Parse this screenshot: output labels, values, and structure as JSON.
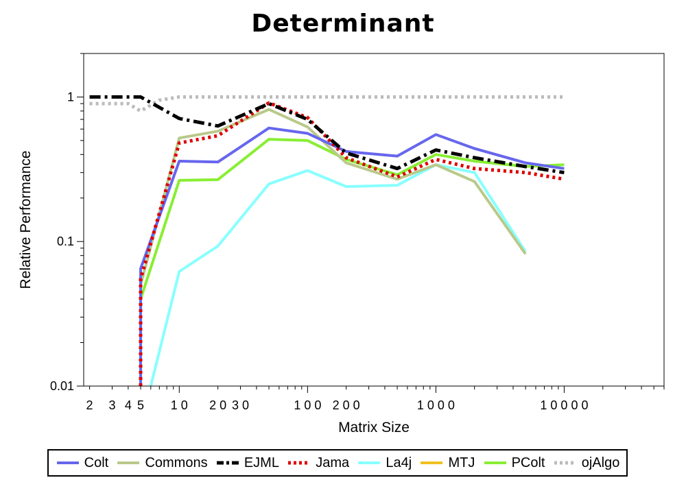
{
  "chart_data": {
    "type": "line",
    "title": "Determinant",
    "xlabel": "Matrix Size",
    "ylabel": "Relative Performance",
    "xscale": "log",
    "yscale": "log",
    "xlim": [
      1.8,
      60000
    ],
    "ylim": [
      0.01,
      2
    ],
    "x_tick_labels": [
      {
        "value": 2,
        "label": "2"
      },
      {
        "value": 3,
        "label": "3"
      },
      {
        "value": 4,
        "label": "4"
      },
      {
        "value": 5,
        "label": "5"
      },
      {
        "value": 10,
        "label": "1 0"
      },
      {
        "value": 20,
        "label": "2 0"
      },
      {
        "value": 30,
        "label": "3 0"
      },
      {
        "value": 100,
        "label": "1 0 0"
      },
      {
        "value": 200,
        "label": "2 0 0"
      },
      {
        "value": 1000,
        "label": "1 0 0 0"
      },
      {
        "value": 10000,
        "label": "1 0 0 0 0"
      }
    ],
    "y_tick_labels": [
      {
        "value": 0.01,
        "label": "0.01"
      },
      {
        "value": 0.1,
        "label": "0.1"
      },
      {
        "value": 1,
        "label": "1"
      }
    ],
    "legend_position": "bottom",
    "grid": false,
    "series": [
      {
        "name": "Colt",
        "color": "#6666ee",
        "dash": "solid",
        "points": [
          [
            5,
            0.01
          ],
          [
            5,
            0.065
          ],
          [
            10,
            0.36
          ],
          [
            20,
            0.355
          ],
          [
            50,
            0.61
          ],
          [
            100,
            0.56
          ],
          [
            200,
            0.42
          ],
          [
            500,
            0.39
          ],
          [
            1000,
            0.55
          ],
          [
            2000,
            0.44
          ],
          [
            5000,
            0.35
          ],
          [
            10000,
            0.32
          ]
        ]
      },
      {
        "name": "Commons",
        "color": "#b9c98a",
        "dash": "solid",
        "points": [
          [
            5,
            0.01
          ],
          [
            5,
            0.05
          ],
          [
            10,
            0.52
          ],
          [
            20,
            0.58
          ],
          [
            50,
            0.82
          ],
          [
            100,
            0.62
          ],
          [
            200,
            0.35
          ],
          [
            500,
            0.27
          ],
          [
            1000,
            0.34
          ],
          [
            2000,
            0.26
          ],
          [
            5000,
            0.082
          ]
        ]
      },
      {
        "name": "EJML",
        "color": "#000000",
        "dash": "dashdot",
        "points": [
          [
            2,
            1.0
          ],
          [
            5,
            1.0
          ],
          [
            10,
            0.71
          ],
          [
            20,
            0.63
          ],
          [
            50,
            0.9
          ],
          [
            100,
            0.7
          ],
          [
            200,
            0.41
          ],
          [
            500,
            0.32
          ],
          [
            1000,
            0.43
          ],
          [
            2000,
            0.38
          ],
          [
            5000,
            0.33
          ],
          [
            10000,
            0.3
          ]
        ]
      },
      {
        "name": "Jama",
        "color": "#dd0000",
        "dash": "dotted",
        "points": [
          [
            5,
            0.01
          ],
          [
            5,
            0.055
          ],
          [
            10,
            0.48
          ],
          [
            20,
            0.54
          ],
          [
            50,
            0.91
          ],
          [
            100,
            0.72
          ],
          [
            200,
            0.38
          ],
          [
            500,
            0.28
          ],
          [
            1000,
            0.37
          ],
          [
            2000,
            0.32
          ],
          [
            5000,
            0.3
          ],
          [
            10000,
            0.27
          ]
        ]
      },
      {
        "name": "La4j",
        "color": "#88ffff",
        "dash": "solid",
        "points": [
          [
            6,
            0.01
          ],
          [
            10,
            0.062
          ],
          [
            20,
            0.093
          ],
          [
            50,
            0.25
          ],
          [
            100,
            0.31
          ],
          [
            200,
            0.24
          ],
          [
            500,
            0.245
          ],
          [
            1000,
            0.34
          ],
          [
            2000,
            0.3
          ],
          [
            5000,
            0.085
          ]
        ]
      },
      {
        "name": "MTJ",
        "color": "#f0c020",
        "dash": "solid",
        "points": []
      },
      {
        "name": "PColt",
        "color": "#88ee33",
        "dash": "solid",
        "points": [
          [
            5,
            0.01
          ],
          [
            5,
            0.04
          ],
          [
            10,
            0.265
          ],
          [
            20,
            0.268
          ],
          [
            50,
            0.51
          ],
          [
            100,
            0.5
          ],
          [
            200,
            0.37
          ],
          [
            500,
            0.29
          ],
          [
            1000,
            0.4
          ],
          [
            2000,
            0.36
          ],
          [
            5000,
            0.33
          ],
          [
            10000,
            0.34
          ]
        ]
      },
      {
        "name": "ojAlgo",
        "color": "#bbbbbb",
        "dash": "dotted",
        "points": [
          [
            2,
            0.9
          ],
          [
            4,
            0.9
          ],
          [
            5,
            0.8
          ],
          [
            7,
            0.95
          ],
          [
            10,
            1.0
          ],
          [
            10000,
            1.0
          ]
        ]
      }
    ]
  }
}
